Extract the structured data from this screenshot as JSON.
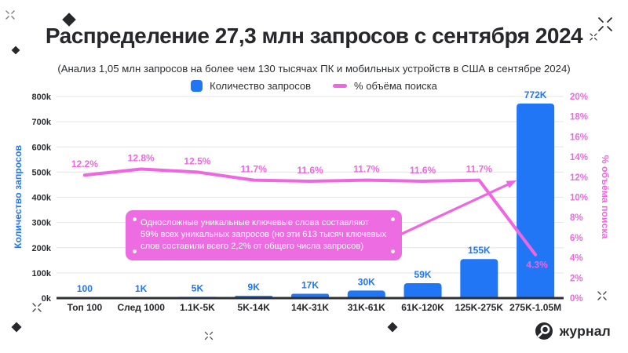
{
  "header": {
    "title": "Распределение 27,3 млн запросов с сентября 2024",
    "subtitle": "(Анализ 1,05 млн запросов на более чем 130 тысячах ПК и мобильных устройств в США в сентябре 2024)"
  },
  "legend": {
    "items": [
      {
        "label": "Количество запросов",
        "swatch": "bar-swatch"
      },
      {
        "label": "% объёма поиска",
        "swatch": "line-swatch"
      }
    ]
  },
  "colors": {
    "blue": "#2176F6",
    "pink": "#EF66E1",
    "pink_fill": "#EE6CE2",
    "dark": "#26282B",
    "grid": "#E8E9EF",
    "baseline": "#2E3136"
  },
  "chart_data": {
    "type": "bar",
    "secondary_type": "line",
    "title": "Распределение 27,3 млн запросов с сентября 2024",
    "categories": [
      "Топ 100",
      "След 1000",
      "1.1K-5K",
      "5K-14K",
      "14K-31K",
      "31K-61K",
      "61K-120K",
      "125K-275K",
      "275K-1.05M"
    ],
    "series": [
      {
        "name": "Количество запросов",
        "type": "bar",
        "axis": "left",
        "values": [
          100,
          1000,
          5000,
          9000,
          17000,
          30000,
          59000,
          155000,
          772000
        ],
        "labels": [
          "100",
          "1K",
          "5K",
          "9K",
          "17K",
          "30K",
          "59K",
          "155K",
          "772K"
        ]
      },
      {
        "name": "% объёма поиска",
        "type": "line",
        "axis": "right",
        "values": [
          12.2,
          12.8,
          12.5,
          11.7,
          11.6,
          11.7,
          11.6,
          11.7,
          4.3
        ],
        "labels": [
          "12.2%",
          "12.8%",
          "12.5%",
          "11.7%",
          "11.6%",
          "11.7%",
          "11.6%",
          "11.7%",
          "4.3%"
        ]
      }
    ],
    "left_axis": {
      "label": "Количество запросов",
      "min": 0,
      "max": 800000,
      "ticks": [
        "800k",
        "700k",
        "600k",
        "500k",
        "400k",
        "300k",
        "200k",
        "100k",
        "0k"
      ]
    },
    "right_axis": {
      "label": "% объёма поиска",
      "min": 0,
      "max": 20,
      "ticks": [
        "20%",
        "18%",
        "16%",
        "14%",
        "12%",
        "10%",
        "8%",
        "6%",
        "4%",
        "2%",
        "0%"
      ]
    },
    "grid": true,
    "legend_position": "top",
    "annotation": {
      "lines": [
        "Односложные уникальные ключевые слова составляют",
        "59% всех уникальных запросов (но эти 613 тысяч ключевых",
        "слов составили всего 2,2% от общего числа запросов)"
      ]
    }
  },
  "footer": {
    "logo_text": "журнал"
  }
}
